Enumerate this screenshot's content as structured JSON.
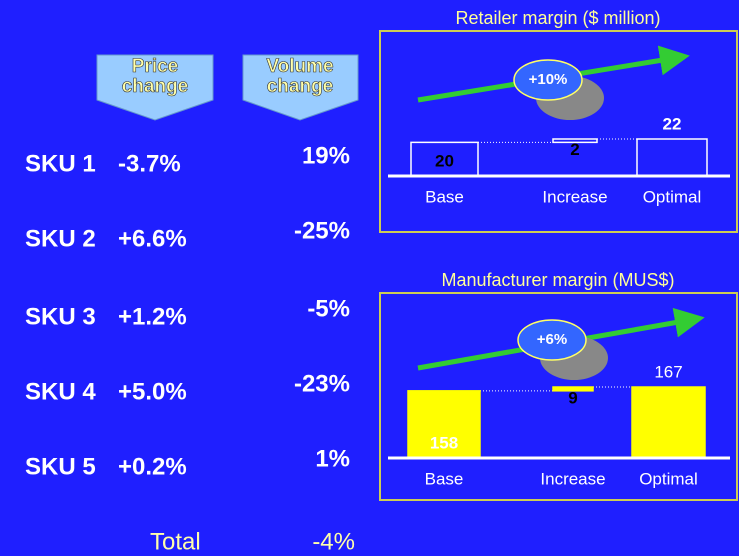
{
  "table": {
    "headers": [
      [
        "Price",
        "change"
      ],
      [
        "Volume",
        "change"
      ]
    ],
    "rows": [
      [
        "SKU 1",
        "-3.7%",
        "19%"
      ],
      [
        "SKU 2",
        "+6.6%",
        "-25%"
      ],
      [
        "SKU 3",
        "+1.2%",
        "-5%"
      ],
      [
        "SKU 4",
        "+5.0%",
        "-23%"
      ],
      [
        "SKU 5",
        "+0.2%",
        "1%"
      ]
    ],
    "total": [
      "Total",
      "-4%"
    ]
  },
  "chart_data": [
    {
      "type": "waterfall",
      "title": "Retailer margin ($ million)",
      "categories": [
        "Base",
        "Increase",
        "Optimal"
      ],
      "values": [
        20,
        2,
        22
      ],
      "color": "none",
      "edge_color": "#ffffff",
      "annotation": "+10%"
    },
    {
      "type": "waterfall",
      "title": "Manufacturer margin (MUS$)",
      "categories": [
        "Base",
        "Increase",
        "Optimal"
      ],
      "values": [
        158,
        9,
        167
      ],
      "color": "#ffff00",
      "edge_color": "#ffff00",
      "annotation": "+6%"
    }
  ]
}
